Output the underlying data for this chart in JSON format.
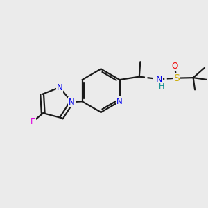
{
  "background_color": "#ebebeb",
  "bond_color": "#1a1a1a",
  "bond_width": 1.6,
  "atom_colors": {
    "N": "#0000ee",
    "F": "#dd00dd",
    "O": "#ee0000",
    "S": "#ccaa00",
    "C": "#1a1a1a",
    "H": "#008888"
  },
  "font_size": 8.5,
  "fig_width": 3.0,
  "fig_height": 3.0,
  "dpi": 100
}
